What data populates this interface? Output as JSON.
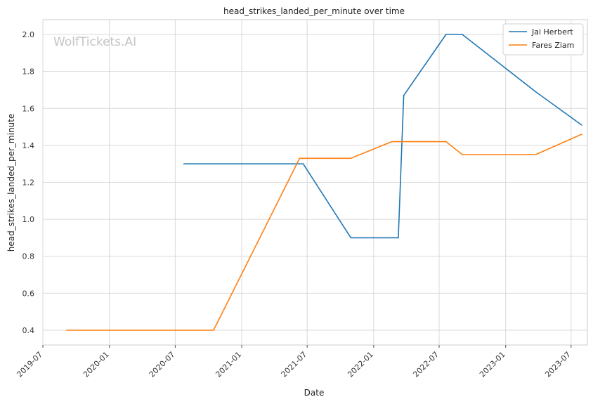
{
  "chart_data": {
    "type": "line",
    "title": "head_strikes_landed_per_minute over time",
    "xlabel": "Date",
    "ylabel": "head_strikes_landed_per_minute",
    "watermark": "WolfTickets.AI",
    "x_axis": {
      "type": "date",
      "range": [
        "2019-07-01",
        "2023-08-15"
      ],
      "ticks": [
        "2019-07",
        "2020-01",
        "2020-07",
        "2021-01",
        "2021-07",
        "2022-01",
        "2022-07",
        "2023-01",
        "2023-07"
      ]
    },
    "y_axis": {
      "range": [
        0.32,
        2.08
      ],
      "ticks": [
        "0.4",
        "0.6",
        "0.8",
        "1.0",
        "1.2",
        "1.4",
        "1.6",
        "1.8",
        "2.0"
      ]
    },
    "grid": true,
    "legend_position": "top-right",
    "series": [
      {
        "name": "Jai Herbert",
        "color": "#1f77b4",
        "points": [
          {
            "x": "2020-07-25",
            "y": 1.3
          },
          {
            "x": "2021-06-20",
            "y": 1.3
          },
          {
            "x": "2021-10-30",
            "y": 0.9
          },
          {
            "x": "2022-03-10",
            "y": 0.9
          },
          {
            "x": "2022-03-25",
            "y": 1.67
          },
          {
            "x": "2022-07-20",
            "y": 2.0
          },
          {
            "x": "2022-09-03",
            "y": 2.0
          },
          {
            "x": "2023-03-25",
            "y": 1.69
          },
          {
            "x": "2023-07-30",
            "y": 1.51
          }
        ]
      },
      {
        "name": "Fares Ziam",
        "color": "#ff7f0e",
        "points": [
          {
            "x": "2019-09-05",
            "y": 0.4
          },
          {
            "x": "2020-10-15",
            "y": 0.4
          },
          {
            "x": "2021-06-10",
            "y": 1.33
          },
          {
            "x": "2021-10-30",
            "y": 1.33
          },
          {
            "x": "2022-02-20",
            "y": 1.42
          },
          {
            "x": "2022-07-20",
            "y": 1.42
          },
          {
            "x": "2022-09-03",
            "y": 1.35
          },
          {
            "x": "2023-03-25",
            "y": 1.35
          },
          {
            "x": "2023-07-30",
            "y": 1.46
          }
        ]
      }
    ]
  }
}
